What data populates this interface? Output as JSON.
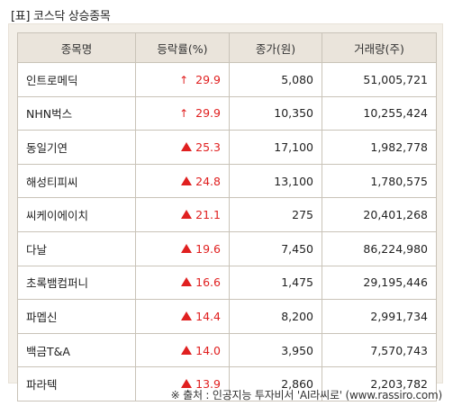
{
  "title": "[표] 코스닥 상승종목",
  "table": {
    "headers": [
      "종목명",
      "등락률(%)",
      "종가(원)",
      "거래량(주)"
    ],
    "rows": [
      {
        "name": "인트로메딕",
        "mark": "thin-up-arrow",
        "rate": "29.9",
        "close": "5,080",
        "volume": "51,005,721"
      },
      {
        "name": "NHN벅스",
        "mark": "thin-up-arrow",
        "rate": "29.9",
        "close": "10,350",
        "volume": "10,255,424"
      },
      {
        "name": "동일기연",
        "mark": "up-triangle",
        "rate": "25.3",
        "close": "17,100",
        "volume": "1,982,778"
      },
      {
        "name": "해성티피씨",
        "mark": "up-triangle",
        "rate": "24.8",
        "close": "13,100",
        "volume": "1,780,575"
      },
      {
        "name": "씨케이에이치",
        "mark": "up-triangle",
        "rate": "21.1",
        "close": "275",
        "volume": "20,401,268"
      },
      {
        "name": "다날",
        "mark": "up-triangle",
        "rate": "19.6",
        "close": "7,450",
        "volume": "86,224,980"
      },
      {
        "name": "초록뱀컴퍼니",
        "mark": "up-triangle",
        "rate": "16.6",
        "close": "1,475",
        "volume": "29,195,446"
      },
      {
        "name": "파멥신",
        "mark": "up-triangle",
        "rate": "14.4",
        "close": "8,200",
        "volume": "2,991,734"
      },
      {
        "name": "백금T&A",
        "mark": "up-triangle",
        "rate": "14.0",
        "close": "3,950",
        "volume": "7,570,743"
      },
      {
        "name": "파라텍",
        "mark": "up-triangle",
        "rate": "13.9",
        "close": "2,860",
        "volume": "2,203,782"
      }
    ]
  },
  "source": "※ 출처 : 인공지능 투자비서 'AI라씨로' (www.rassiro.com)",
  "colors": {
    "up": "#e02020",
    "header_bg": "#eae4db",
    "panel_bg": "#f3efe8"
  }
}
